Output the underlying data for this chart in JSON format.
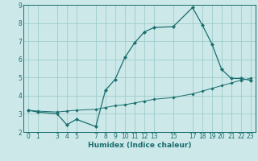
{
  "xlabel": "Humidex (Indice chaleur)",
  "bg_color": "#cce8e8",
  "grid_color": "#a0cccc",
  "line_color": "#1a6e6e",
  "line1_x": [
    0,
    1,
    3,
    4,
    5,
    7,
    8,
    9,
    10,
    11,
    12,
    13,
    15,
    17,
    18,
    19,
    20,
    21,
    22,
    23
  ],
  "line1_y": [
    3.2,
    3.1,
    3.0,
    2.4,
    2.7,
    2.3,
    4.3,
    4.9,
    6.1,
    6.9,
    7.5,
    7.75,
    7.8,
    8.85,
    7.9,
    6.85,
    5.45,
    4.95,
    4.95,
    4.85
  ],
  "line2_x": [
    0,
    1,
    3,
    4,
    5,
    7,
    8,
    9,
    10,
    11,
    12,
    13,
    15,
    17,
    18,
    19,
    20,
    21,
    22,
    23
  ],
  "line2_y": [
    3.2,
    3.15,
    3.1,
    3.15,
    3.2,
    3.25,
    3.35,
    3.45,
    3.5,
    3.6,
    3.7,
    3.8,
    3.9,
    4.1,
    4.25,
    4.4,
    4.55,
    4.7,
    4.85,
    4.95
  ],
  "ylim": [
    2,
    9
  ],
  "xlim": [
    -0.5,
    23.5
  ],
  "xticks": [
    0,
    1,
    3,
    4,
    5,
    7,
    8,
    9,
    10,
    11,
    12,
    13,
    15,
    17,
    18,
    19,
    20,
    21,
    22,
    23
  ],
  "yticks": [
    2,
    3,
    4,
    5,
    6,
    7,
    8,
    9
  ],
  "tick_fontsize": 5.5,
  "xlabel_fontsize": 6.5
}
